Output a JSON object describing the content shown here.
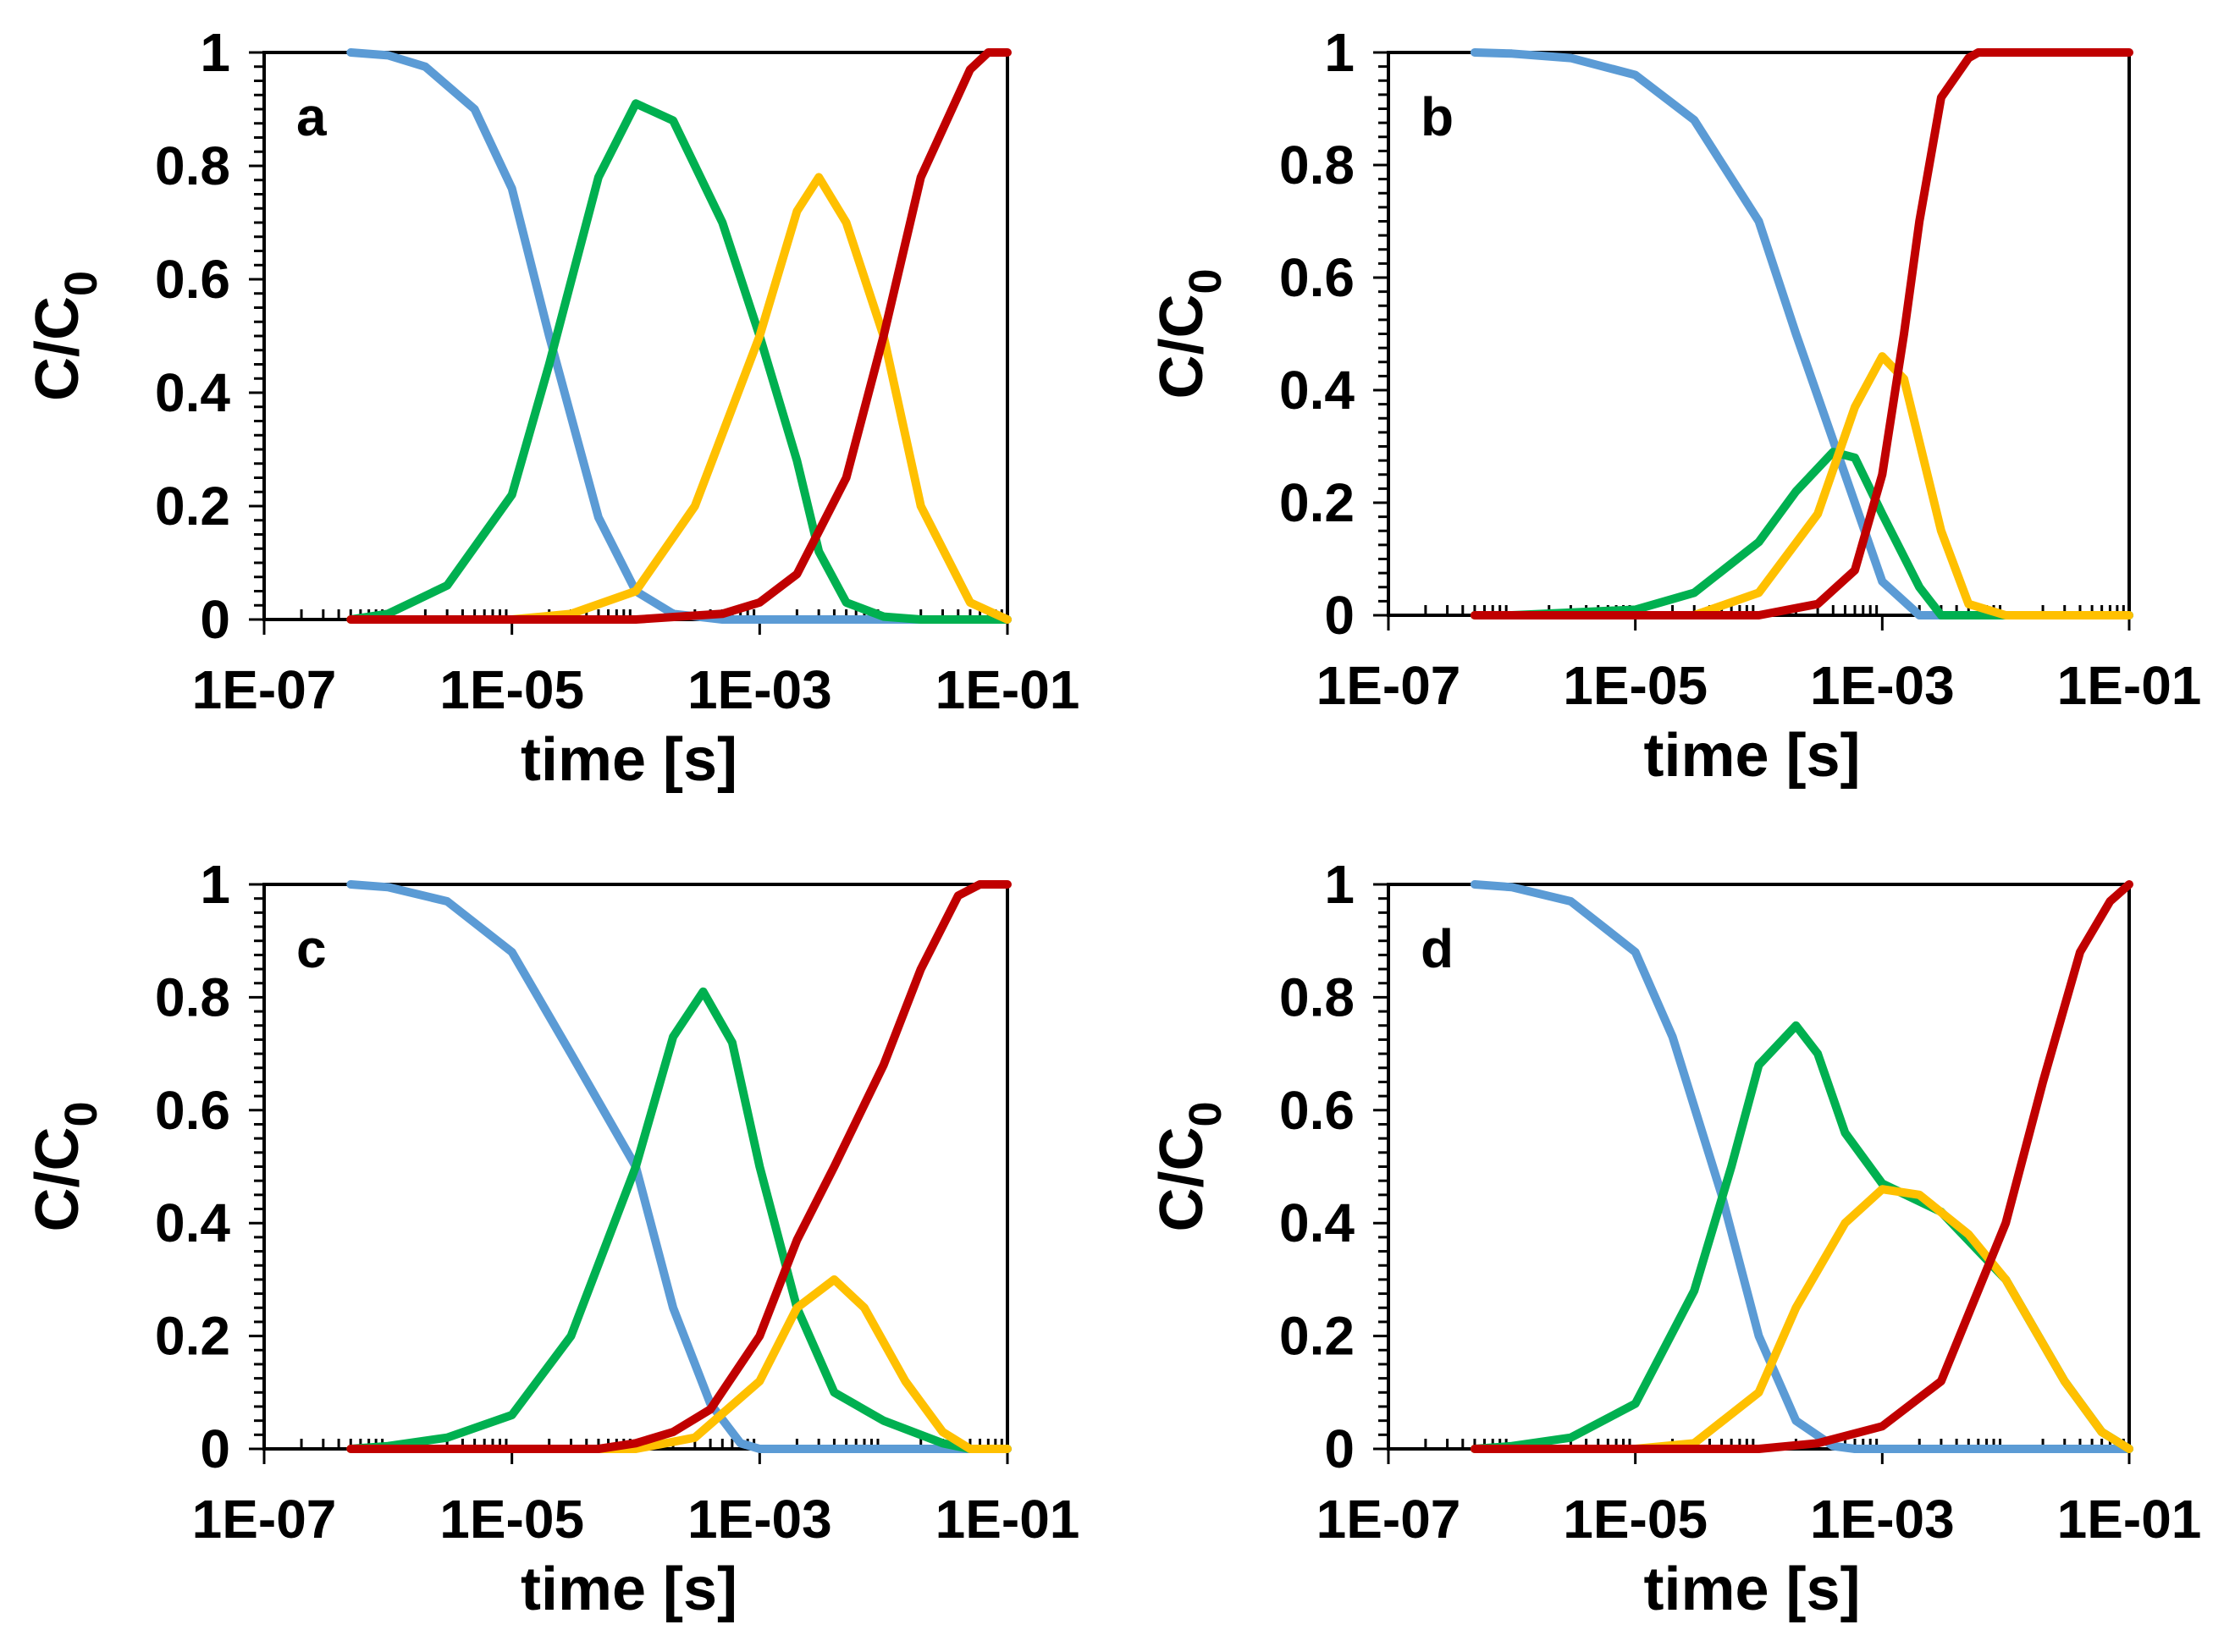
{
  "chart_data": [
    {
      "type": "line",
      "panel_label": "a",
      "xlabel": "time [s]",
      "ylabel_main": "C/C",
      "ylabel_sub": "0",
      "x_scale": "log",
      "xlim": [
        1e-07,
        0.1
      ],
      "ylim": [
        0,
        1
      ],
      "x_ticks": [
        "1E-07",
        "1E-05",
        "1E-03",
        "1E-01"
      ],
      "y_ticks": [
        "0",
        "0.2",
        "0.4",
        "0.6",
        "0.8",
        "1"
      ],
      "grid": false,
      "series": [
        {
          "color": "#5b9bd5",
          "points": [
            [
              5e-07,
              1.0
            ],
            [
              1e-06,
              0.995
            ],
            [
              2e-06,
              0.975
            ],
            [
              5e-06,
              0.9
            ],
            [
              1e-05,
              0.76
            ],
            [
              2e-05,
              0.5
            ],
            [
              5e-05,
              0.18
            ],
            [
              0.0001,
              0.05
            ],
            [
              0.0002,
              0.01
            ],
            [
              0.0005,
              0.0
            ],
            [
              0.1,
              0.0
            ]
          ]
        },
        {
          "color": "#00b050",
          "points": [
            [
              5e-07,
              0.0
            ],
            [
              1e-06,
              0.01
            ],
            [
              3e-06,
              0.06
            ],
            [
              1e-05,
              0.22
            ],
            [
              2e-05,
              0.45
            ],
            [
              5e-05,
              0.78
            ],
            [
              0.0001,
              0.91
            ],
            [
              0.0002,
              0.88
            ],
            [
              0.0005,
              0.7
            ],
            [
              0.001,
              0.5
            ],
            [
              0.002,
              0.28
            ],
            [
              0.003,
              0.12
            ],
            [
              0.005,
              0.03
            ],
            [
              0.01,
              0.005
            ],
            [
              0.02,
              0.0
            ],
            [
              0.1,
              0.0
            ]
          ]
        },
        {
          "color": "#ffc000",
          "points": [
            [
              5e-07,
              0.0
            ],
            [
              1e-05,
              0.0
            ],
            [
              3e-05,
              0.01
            ],
            [
              0.0001,
              0.05
            ],
            [
              0.0003,
              0.2
            ],
            [
              0.001,
              0.5
            ],
            [
              0.002,
              0.72
            ],
            [
              0.003,
              0.78
            ],
            [
              0.005,
              0.7
            ],
            [
              0.01,
              0.5
            ],
            [
              0.02,
              0.2
            ],
            [
              0.05,
              0.03
            ],
            [
              0.1,
              0.0
            ]
          ]
        },
        {
          "color": "#c00000",
          "points": [
            [
              5e-07,
              0.0
            ],
            [
              0.0001,
              0.0
            ],
            [
              0.0005,
              0.01
            ],
            [
              0.001,
              0.03
            ],
            [
              0.002,
              0.08
            ],
            [
              0.005,
              0.25
            ],
            [
              0.01,
              0.5
            ],
            [
              0.02,
              0.78
            ],
            [
              0.05,
              0.97
            ],
            [
              0.07,
              1.0
            ],
            [
              0.1,
              1.0
            ]
          ]
        }
      ]
    },
    {
      "type": "line",
      "panel_label": "b",
      "xlabel": "time [s]",
      "ylabel_main": "C/C",
      "ylabel_sub": "0",
      "x_scale": "log",
      "xlim": [
        1e-07,
        0.1
      ],
      "ylim": [
        0,
        1
      ],
      "x_ticks": [
        "1E-07",
        "1E-05",
        "1E-03",
        "1E-01"
      ],
      "y_ticks": [
        "0",
        "0.2",
        "0.4",
        "0.6",
        "0.8",
        "1"
      ],
      "grid": false,
      "series": [
        {
          "color": "#5b9bd5",
          "points": [
            [
              5e-07,
              1.0
            ],
            [
              1e-06,
              0.998
            ],
            [
              3e-06,
              0.99
            ],
            [
              1e-05,
              0.96
            ],
            [
              3e-05,
              0.88
            ],
            [
              0.0001,
              0.7
            ],
            [
              0.0002,
              0.5
            ],
            [
              0.0005,
              0.25
            ],
            [
              0.001,
              0.06
            ],
            [
              0.002,
              0.0
            ],
            [
              0.1,
              0.0
            ]
          ]
        },
        {
          "color": "#00b050",
          "points": [
            [
              5e-07,
              0.0
            ],
            [
              1e-06,
              0.0
            ],
            [
              1e-05,
              0.01
            ],
            [
              3e-05,
              0.04
            ],
            [
              0.0001,
              0.13
            ],
            [
              0.0002,
              0.22
            ],
            [
              0.0004,
              0.29
            ],
            [
              0.0006,
              0.28
            ],
            [
              0.001,
              0.18
            ],
            [
              0.002,
              0.05
            ],
            [
              0.003,
              0.0
            ],
            [
              0.1,
              0.0
            ]
          ]
        },
        {
          "color": "#ffc000",
          "points": [
            [
              5e-07,
              0.0
            ],
            [
              3e-05,
              0.0
            ],
            [
              0.0001,
              0.04
            ],
            [
              0.0003,
              0.18
            ],
            [
              0.0006,
              0.37
            ],
            [
              0.001,
              0.46
            ],
            [
              0.0015,
              0.42
            ],
            [
              0.003,
              0.15
            ],
            [
              0.005,
              0.02
            ],
            [
              0.01,
              0.0
            ],
            [
              0.1,
              0.0
            ]
          ]
        },
        {
          "color": "#c00000",
          "points": [
            [
              5e-07,
              0.0
            ],
            [
              0.0001,
              0.0
            ],
            [
              0.0003,
              0.02
            ],
            [
              0.0006,
              0.08
            ],
            [
              0.001,
              0.25
            ],
            [
              0.0015,
              0.5
            ],
            [
              0.002,
              0.7
            ],
            [
              0.003,
              0.92
            ],
            [
              0.005,
              0.99
            ],
            [
              0.006,
              1.0
            ],
            [
              0.1,
              1.0
            ]
          ]
        }
      ]
    },
    {
      "type": "line",
      "panel_label": "c",
      "xlabel": "time [s]",
      "ylabel_main": "C/C",
      "ylabel_sub": "0",
      "x_scale": "log",
      "xlim": [
        1e-07,
        0.1
      ],
      "ylim": [
        0,
        1
      ],
      "x_ticks": [
        "1E-07",
        "1E-05",
        "1E-03",
        "1E-01"
      ],
      "y_ticks": [
        "0",
        "0.2",
        "0.4",
        "0.6",
        "0.8",
        "1"
      ],
      "grid": false,
      "series": [
        {
          "color": "#5b9bd5",
          "points": [
            [
              5e-07,
              1.0
            ],
            [
              1e-06,
              0.995
            ],
            [
              3e-06,
              0.97
            ],
            [
              1e-05,
              0.88
            ],
            [
              3e-05,
              0.7
            ],
            [
              0.0001,
              0.5
            ],
            [
              0.0002,
              0.25
            ],
            [
              0.0004,
              0.08
            ],
            [
              0.0007,
              0.01
            ],
            [
              0.001,
              0.0
            ],
            [
              0.1,
              0.0
            ]
          ]
        },
        {
          "color": "#00b050",
          "points": [
            [
              5e-07,
              0.0
            ],
            [
              1e-06,
              0.005
            ],
            [
              3e-06,
              0.02
            ],
            [
              1e-05,
              0.06
            ],
            [
              3e-05,
              0.2
            ],
            [
              0.0001,
              0.5
            ],
            [
              0.0002,
              0.73
            ],
            [
              0.00035,
              0.81
            ],
            [
              0.0006,
              0.72
            ],
            [
              0.001,
              0.5
            ],
            [
              0.002,
              0.25
            ],
            [
              0.004,
              0.1
            ],
            [
              0.01,
              0.05
            ],
            [
              0.03,
              0.01
            ],
            [
              0.05,
              0.0
            ],
            [
              0.1,
              0.0
            ]
          ]
        },
        {
          "color": "#ffc000",
          "points": [
            [
              5e-07,
              0.0
            ],
            [
              0.0001,
              0.0
            ],
            [
              0.0003,
              0.02
            ],
            [
              0.001,
              0.12
            ],
            [
              0.002,
              0.25
            ],
            [
              0.004,
              0.3
            ],
            [
              0.007,
              0.25
            ],
            [
              0.015,
              0.12
            ],
            [
              0.03,
              0.03
            ],
            [
              0.05,
              0.0
            ],
            [
              0.1,
              0.0
            ]
          ]
        },
        {
          "color": "#c00000",
          "points": [
            [
              5e-07,
              0.0
            ],
            [
              5e-05,
              0.0
            ],
            [
              0.0001,
              0.01
            ],
            [
              0.0002,
              0.03
            ],
            [
              0.0004,
              0.07
            ],
            [
              0.001,
              0.2
            ],
            [
              0.002,
              0.37
            ],
            [
              0.004,
              0.5
            ],
            [
              0.01,
              0.68
            ],
            [
              0.02,
              0.85
            ],
            [
              0.04,
              0.98
            ],
            [
              0.06,
              1.0
            ],
            [
              0.1,
              1.0
            ]
          ]
        }
      ]
    },
    {
      "type": "line",
      "panel_label": "d",
      "xlabel": "time [s]",
      "ylabel_main": "C/C",
      "ylabel_sub": "0",
      "x_scale": "log",
      "xlim": [
        1e-07,
        0.1
      ],
      "ylim": [
        0,
        1
      ],
      "x_ticks": [
        "1E-07",
        "1E-05",
        "1E-03",
        "1E-01"
      ],
      "y_ticks": [
        "0",
        "0.2",
        "0.4",
        "0.6",
        "0.8",
        "1"
      ],
      "grid": false,
      "series": [
        {
          "color": "#5b9bd5",
          "points": [
            [
              5e-07,
              1.0
            ],
            [
              1e-06,
              0.995
            ],
            [
              3e-06,
              0.97
            ],
            [
              1e-05,
              0.88
            ],
            [
              2e-05,
              0.73
            ],
            [
              5e-05,
              0.45
            ],
            [
              0.0001,
              0.2
            ],
            [
              0.0002,
              0.05
            ],
            [
              0.0004,
              0.005
            ],
            [
              0.0006,
              0.0
            ],
            [
              0.1,
              0.0
            ]
          ]
        },
        {
          "color": "#00b050",
          "points": [
            [
              5e-07,
              0.0
            ],
            [
              1e-06,
              0.005
            ],
            [
              3e-06,
              0.02
            ],
            [
              1e-05,
              0.08
            ],
            [
              3e-05,
              0.28
            ],
            [
              6e-05,
              0.5
            ],
            [
              0.0001,
              0.68
            ],
            [
              0.0002,
              0.75
            ],
            [
              0.0003,
              0.7
            ],
            [
              0.0005,
              0.56
            ],
            [
              0.001,
              0.47
            ],
            [
              0.003,
              0.42
            ],
            [
              0.01,
              0.3
            ],
            [
              0.03,
              0.12
            ],
            [
              0.06,
              0.03
            ],
            [
              0.1,
              0.0
            ]
          ]
        },
        {
          "color": "#ffc000",
          "points": [
            [
              5e-07,
              0.0
            ],
            [
              1e-05,
              0.0
            ],
            [
              3e-05,
              0.01
            ],
            [
              0.0001,
              0.1
            ],
            [
              0.0002,
              0.25
            ],
            [
              0.0005,
              0.4
            ],
            [
              0.001,
              0.46
            ],
            [
              0.002,
              0.45
            ],
            [
              0.005,
              0.38
            ],
            [
              0.01,
              0.3
            ],
            [
              0.03,
              0.12
            ],
            [
              0.06,
              0.03
            ],
            [
              0.1,
              0.0
            ]
          ]
        },
        {
          "color": "#c00000",
          "points": [
            [
              5e-07,
              0.0
            ],
            [
              0.0001,
              0.0
            ],
            [
              0.0003,
              0.01
            ],
            [
              0.001,
              0.04
            ],
            [
              0.003,
              0.12
            ],
            [
              0.01,
              0.4
            ],
            [
              0.02,
              0.65
            ],
            [
              0.04,
              0.88
            ],
            [
              0.07,
              0.97
            ],
            [
              0.1,
              1.0
            ]
          ]
        }
      ]
    }
  ]
}
